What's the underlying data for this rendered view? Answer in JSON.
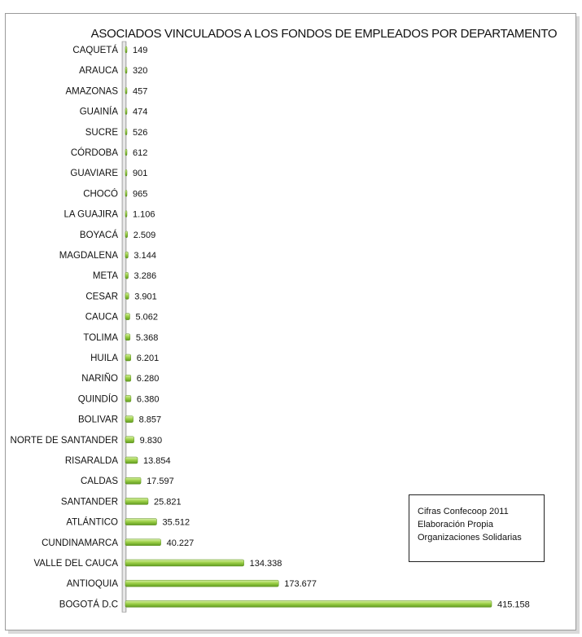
{
  "chart_data": {
    "type": "bar",
    "orientation": "horizontal",
    "title": "ASOCIADOS VINCULADOS A LOS FONDOS DE EMPLEADOS POR DEPARTAMENTO",
    "categories": [
      "CAQUETÁ",
      "ARAUCA",
      "AMAZONAS",
      "GUAINÍA",
      "SUCRE",
      "CÓRDOBA",
      "GUAVIARE",
      "CHOCÓ",
      "LA GUAJIRA",
      "BOYACÁ",
      "MAGDALENA",
      "META",
      "CESAR",
      "CAUCA",
      "TOLIMA",
      "HUILA",
      "NARIÑO",
      "QUINDÍO",
      "BOLIVAR",
      "NORTE DE SANTANDER",
      "RISARALDA",
      "CALDAS",
      "SANTANDER",
      "ATLÁNTICO",
      "CUNDINAMARCA",
      "VALLE DEL CAUCA",
      "ANTIOQUIA",
      "BOGOTÁ D.C"
    ],
    "values": [
      149,
      320,
      457,
      474,
      526,
      612,
      901,
      965,
      1106,
      2509,
      3144,
      3286,
      3901,
      5062,
      5368,
      6201,
      6280,
      6380,
      8857,
      9830,
      13854,
      17597,
      25821,
      35512,
      40227,
      134338,
      173677,
      415158
    ],
    "value_labels": [
      "149",
      "320",
      "457",
      "474",
      "526",
      "612",
      "901",
      "965",
      "1.106",
      "2.509",
      "3.144",
      "3.286",
      "3.901",
      "5.062",
      "5.368",
      "6.201",
      "6.280",
      "6.380",
      "8.857",
      "9.830",
      "13.854",
      "17.597",
      "25.821",
      "35.512",
      "40.227",
      "134.338",
      "173.677",
      "415.158"
    ],
    "xlim": [
      0,
      415158
    ],
    "grid": false,
    "legend": "none",
    "bar_color": "#8cc63f"
  },
  "note": {
    "line1": "Cifras Confecoop 2011",
    "line2": "Elaboración Propia",
    "line3": "Organizaciones Solidarias"
  }
}
